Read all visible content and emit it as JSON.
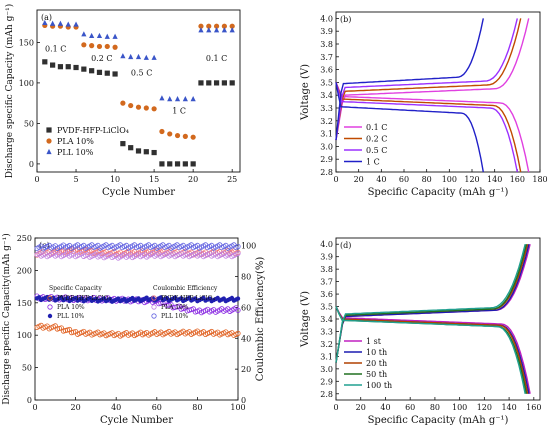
{
  "chart_data": [
    {
      "panel_label": "(a)",
      "type": "scatter",
      "xlabel": "Cycle Number",
      "ylabel": "Discharge specific Capacity (mAh g⁻¹)",
      "xlim": [
        0,
        26
      ],
      "ylim": [
        -10,
        190
      ],
      "xticks": [
        0,
        5,
        10,
        15,
        20,
        25
      ],
      "yticks": [
        0,
        50,
        100,
        150
      ],
      "legend": {
        "placement": "bottom-left"
      },
      "annotations": [
        {
          "text": "0.1 C",
          "x": 2.4,
          "y": 139
        },
        {
          "text": "0.2 C",
          "x": 8.3,
          "y": 127
        },
        {
          "text": "0.5 C",
          "x": 13.4,
          "y": 109
        },
        {
          "text": "1 C",
          "x": 18.2,
          "y": 62
        },
        {
          "text": "0.1 C",
          "x": 23.0,
          "y": 127
        }
      ],
      "series": [
        {
          "name": "PVDF-HFP-LiClO₄",
          "marker": "square",
          "color": "#303030",
          "x": [
            1,
            2,
            3,
            4,
            5,
            6,
            7,
            8,
            9,
            10,
            11,
            12,
            13,
            14,
            15,
            16,
            17,
            18,
            19,
            20,
            21,
            22,
            23,
            24,
            25
          ],
          "y": [
            126,
            122,
            120,
            120,
            119,
            117,
            115,
            113,
            112,
            111,
            25,
            20,
            16,
            15,
            14,
            0,
            0,
            0,
            0,
            0,
            100,
            100,
            100,
            100,
            100
          ]
        },
        {
          "name": "PLA 10%",
          "marker": "circle",
          "color": "#d2691e",
          "x": [
            1,
            2,
            3,
            4,
            5,
            6,
            7,
            8,
            9,
            10,
            11,
            12,
            13,
            14,
            15,
            16,
            17,
            18,
            19,
            20,
            21,
            22,
            23,
            24,
            25
          ],
          "y": [
            171,
            170,
            170,
            169,
            169,
            147,
            146,
            145,
            145,
            144,
            75,
            72,
            70,
            69,
            68,
            40,
            37,
            35,
            34,
            33,
            170,
            170,
            170,
            170,
            170
          ]
        },
        {
          "name": "PLL 10%",
          "marker": "triangle",
          "color": "#3a55c8",
          "x": [
            1,
            2,
            3,
            4,
            5,
            6,
            7,
            8,
            9,
            10,
            11,
            12,
            13,
            14,
            15,
            16,
            17,
            18,
            19,
            20,
            21,
            22,
            23,
            24,
            25
          ],
          "y": [
            174,
            173,
            173,
            172,
            172,
            160,
            158,
            158,
            157,
            157,
            133,
            132,
            132,
            131,
            131,
            81,
            80,
            80,
            80,
            80,
            165,
            165,
            165,
            165,
            165
          ]
        }
      ]
    },
    {
      "panel_label": "(b)",
      "type": "line",
      "xlabel": "Specific Capacity (mAh g⁻¹)",
      "ylabel": "Voltage (V)",
      "xlim": [
        0,
        180
      ],
      "ylim": [
        2.8,
        4.05
      ],
      "xticks": [
        0,
        20,
        40,
        60,
        80,
        100,
        120,
        140,
        160,
        180
      ],
      "yticks": [
        2.8,
        2.9,
        3.0,
        3.1,
        3.2,
        3.3,
        3.4,
        3.5,
        3.6,
        3.7,
        3.8,
        3.9,
        4.0
      ],
      "legend": {
        "placement": "bottom-left"
      },
      "series": [
        {
          "name": "0.1 C",
          "color": "#e040e0",
          "capacity": 170,
          "charge_plateau": 3.42,
          "discharge_plateau": 3.39
        },
        {
          "name": "0.2 C",
          "color": "#c04a00",
          "capacity": 163,
          "charge_plateau": 3.45,
          "discharge_plateau": 3.37
        },
        {
          "name": "0.5 C",
          "color": "#9b30ff",
          "capacity": 160,
          "charge_plateau": 3.48,
          "discharge_plateau": 3.35
        },
        {
          "name": "1 C",
          "color": "#2020c8",
          "capacity": 130,
          "charge_plateau": 3.51,
          "discharge_plateau": 3.31
        }
      ]
    },
    {
      "panel_label": "(c)",
      "type": "scatter",
      "xlabel": "Cycle Number",
      "ylabel": "Discharge specific Capacity(mAh g⁻¹)",
      "y2label": "Coulombic Efficiency(%)",
      "xlim": [
        0,
        100
      ],
      "ylim": [
        0,
        250
      ],
      "y2lim": [
        0,
        105
      ],
      "xticks": [
        0,
        20,
        40,
        60,
        80,
        100
      ],
      "yticks": [
        0,
        50,
        100,
        150,
        200,
        250
      ],
      "y2ticks": [
        0,
        20,
        40,
        60,
        80,
        100
      ],
      "legend": {
        "placement": "middle-left",
        "capacity_title": "Specific Capacity",
        "efficiency_title": "Coulombic Efficiency"
      },
      "series": [
        {
          "name": "PVDF-HFP-LiClO₄",
          "marker": "circle-hollow",
          "color": "#e06020",
          "axis": "left",
          "trend": [
            [
              1,
              113
            ],
            [
              10,
              112
            ],
            [
              20,
              104
            ],
            [
              40,
              101
            ],
            [
              60,
              103
            ],
            [
              80,
              104
            ],
            [
              100,
              102
            ]
          ]
        },
        {
          "name": "PLA 10%",
          "marker": "circle-hollow",
          "color": "#8a2be2",
          "axis": "left",
          "trend": [
            [
              1,
              158
            ],
            [
              20,
              156
            ],
            [
              40,
              155
            ],
            [
              60,
              152
            ],
            [
              70,
              143
            ],
            [
              80,
              137
            ],
            [
              90,
              138
            ],
            [
              100,
              140
            ]
          ]
        },
        {
          "name": "PLL 10%",
          "marker": "circle-filled",
          "color": "#2020b0",
          "axis": "left",
          "trend": [
            [
              1,
              157
            ],
            [
              20,
              155
            ],
            [
              40,
              154
            ],
            [
              60,
              156
            ],
            [
              80,
              155
            ],
            [
              100,
              155
            ]
          ]
        },
        {
          "name": "PVDF-HFP-LiClO₄",
          "marker": "circle-hollow",
          "color": "#f07070",
          "axis": "right",
          "trend": [
            [
              1,
              95
            ],
            [
              10,
              96
            ],
            [
              20,
              97
            ],
            [
              40,
              95
            ],
            [
              60,
              96
            ],
            [
              80,
              95
            ],
            [
              100,
              96
            ]
          ]
        },
        {
          "name": "PLA 10%",
          "marker": "circle-hollow",
          "color": "#c080e0",
          "axis": "right",
          "trend": [
            [
              1,
              94
            ],
            [
              20,
              94
            ],
            [
              40,
              93
            ],
            [
              60,
              94
            ],
            [
              80,
              94
            ],
            [
              100,
              94
            ]
          ]
        },
        {
          "name": "PLL 10%",
          "marker": "circle-hollow",
          "color": "#6060e0",
          "axis": "right",
          "trend": [
            [
              1,
              99
            ],
            [
              20,
              99.5
            ],
            [
              40,
              99.5
            ],
            [
              60,
              99.5
            ],
            [
              80,
              99.5
            ],
            [
              100,
              99.5
            ]
          ]
        }
      ]
    },
    {
      "panel_label": "(d)",
      "type": "line",
      "xlabel": "Specific Capacity (mAh g⁻¹)",
      "ylabel": "Voltage (V)",
      "xlim": [
        0,
        165
      ],
      "ylim": [
        2.75,
        4.05
      ],
      "xticks": [
        0,
        20,
        40,
        60,
        80,
        100,
        120,
        140,
        160
      ],
      "yticks": [
        2.8,
        2.9,
        3.0,
        3.1,
        3.2,
        3.3,
        3.4,
        3.5,
        3.6,
        3.7,
        3.8,
        3.9,
        4.0
      ],
      "legend": {
        "placement": "bottom-left"
      },
      "series": [
        {
          "name": "1 st",
          "color": "#c020c0",
          "capacity": 157,
          "charge_plateau": 3.44,
          "discharge_plateau": 3.41
        },
        {
          "name": "10 th",
          "color": "#1c1cb0",
          "capacity": 156,
          "charge_plateau": 3.44,
          "discharge_plateau": 3.4
        },
        {
          "name": "20 th",
          "color": "#b04000",
          "capacity": 155,
          "charge_plateau": 3.45,
          "discharge_plateau": 3.4
        },
        {
          "name": "50 th",
          "color": "#207020",
          "capacity": 154,
          "charge_plateau": 3.45,
          "discharge_plateau": 3.39
        },
        {
          "name": "100 th",
          "color": "#20a090",
          "capacity": 153,
          "charge_plateau": 3.46,
          "discharge_plateau": 3.39
        }
      ]
    }
  ]
}
